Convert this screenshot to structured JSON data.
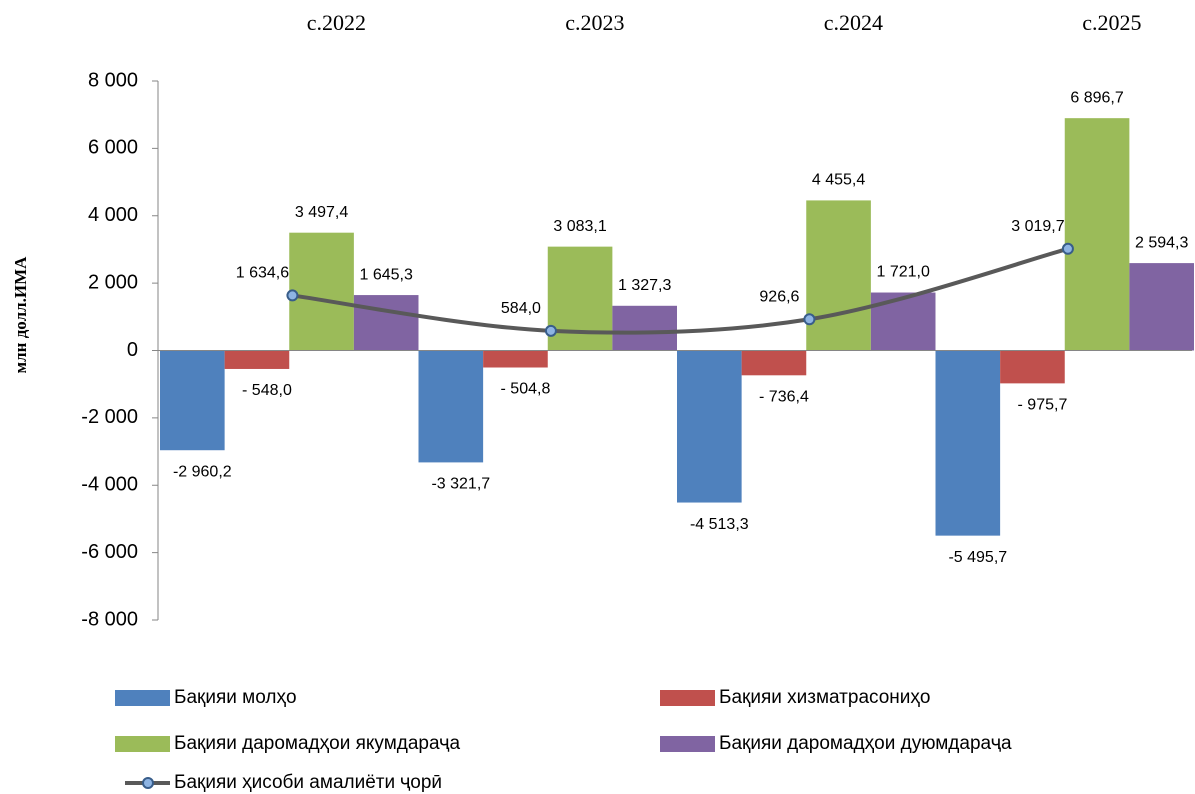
{
  "chart_data": {
    "type": "bar",
    "y_label": "млн долл.ИМА",
    "categories": [
      "с.2022",
      "с.2023",
      "с.2024",
      "с.2025"
    ],
    "ylim": [
      -8000,
      8000
    ],
    "yticks": [
      {
        "value": 8000,
        "label": "8 000"
      },
      {
        "value": 6000,
        "label": "6 000"
      },
      {
        "value": 4000,
        "label": "4 000"
      },
      {
        "value": 2000,
        "label": "2 000"
      },
      0,
      {
        "value": -2000,
        "label": "-2 000"
      },
      {
        "value": -4000,
        "label": "-4 000"
      },
      {
        "value": -6000,
        "label": "-6 000"
      },
      {
        "value": -8000,
        "label": "-8 000"
      }
    ],
    "legend": "bottom",
    "series": [
      {
        "name": "Бақияи молҳо",
        "color": "#4f81bd",
        "values": [
          -2960.2,
          -3321.7,
          -4513.3,
          -5495.7
        ],
        "value_labels": [
          "-2 960,2",
          "-3 321,7",
          "-4 513,3",
          "-5 495,7"
        ]
      },
      {
        "name": "Бақияи хизматрасониҳо",
        "color": "#c0504d",
        "values": [
          -548.0,
          -504.8,
          -736.4,
          -975.7
        ],
        "value_labels": [
          "- 548,0",
          "- 504,8",
          "- 736,4",
          "- 975,7"
        ]
      },
      {
        "name": "Бақияи даромадҳои якумдараҷа",
        "color": "#9bbb59",
        "values": [
          3497.4,
          3083.1,
          4455.4,
          6896.7
        ],
        "value_labels": [
          "3 497,4",
          "3 083,1",
          "4 455,4",
          "6 896,7"
        ]
      },
      {
        "name": "Бақияи даромадҳои дуюмдараҷа",
        "color": "#8064a2",
        "values": [
          1645.3,
          1327.3,
          1721.0,
          2594.3
        ],
        "value_labels": [
          "1 645,3",
          "1 327,3",
          "1 721,0",
          "2 594,3"
        ]
      },
      {
        "name": "Бақияи ҳисоби амалиёти ҷорӣ",
        "type": "line",
        "color": "#595959",
        "values": [
          1634.6,
          584.0,
          926.6,
          3019.7
        ],
        "value_labels": [
          "1 634,6",
          "584,0",
          "926,6",
          "3 019,7"
        ]
      }
    ]
  }
}
